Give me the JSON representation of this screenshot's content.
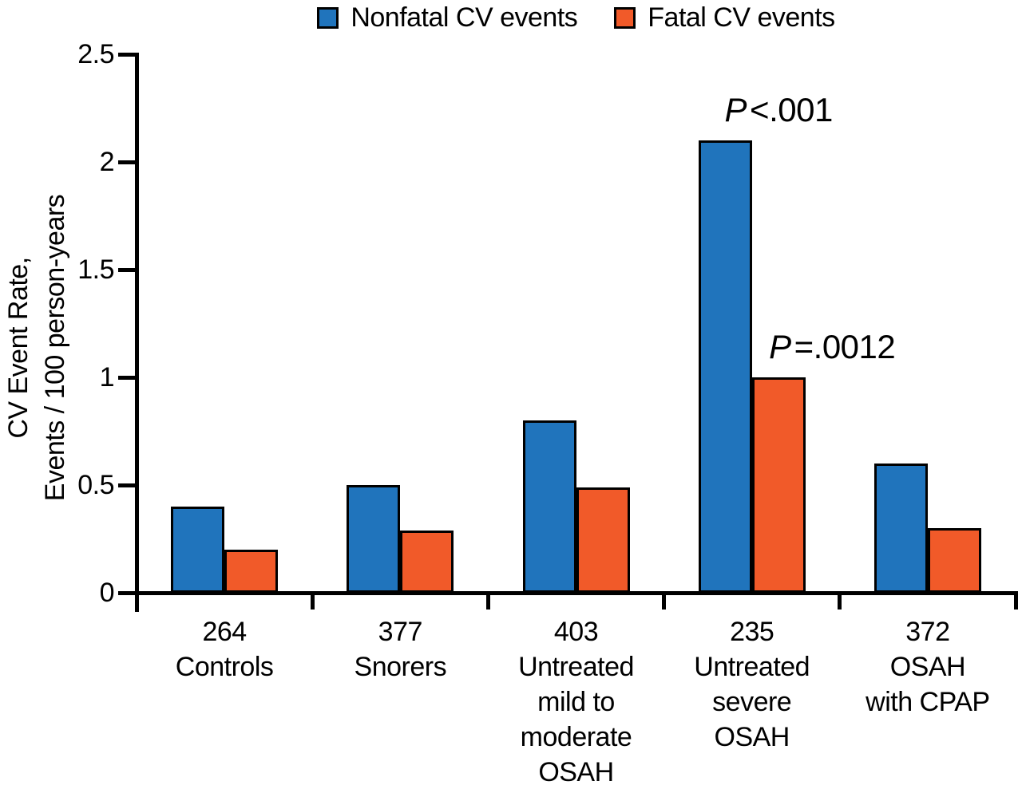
{
  "chart_data": {
    "type": "bar",
    "title": "",
    "legend_position": "top",
    "grid": false,
    "ylabel_lines": [
      "CV Event Rate,",
      "Events / 100 person-years"
    ],
    "ylim": [
      0,
      2.5
    ],
    "yticks": [
      0,
      0.5,
      1,
      1.5,
      2,
      2.5
    ],
    "ytick_labels": [
      "0",
      "0.5",
      "1",
      "1.5",
      "2",
      "2.5"
    ],
    "categories": [
      [
        "264",
        "Controls"
      ],
      [
        "377",
        "Snorers"
      ],
      [
        "403",
        "Untreated",
        "mild to",
        "moderate",
        "OSAH"
      ],
      [
        "235",
        "Untreated",
        "severe",
        "OSAH"
      ],
      [
        "372",
        "OSAH",
        "with CPAP"
      ]
    ],
    "series": [
      {
        "name": "Nonfatal CV events",
        "color": "#2074BC",
        "values": [
          0.4,
          0.5,
          0.8,
          2.1,
          0.6
        ]
      },
      {
        "name": "Fatal CV events",
        "color": "#F15A29",
        "values": [
          0.2,
          0.29,
          0.49,
          1.0,
          0.3
        ]
      }
    ],
    "annotations": [
      {
        "text": "P<.001",
        "p": "P",
        "rest": "<.001",
        "group": 3,
        "series": 0
      },
      {
        "text": "P=.0012",
        "p": "P",
        "rest": "=.0012",
        "group": 3,
        "series": 1
      }
    ],
    "axis_color": "#000000"
  }
}
